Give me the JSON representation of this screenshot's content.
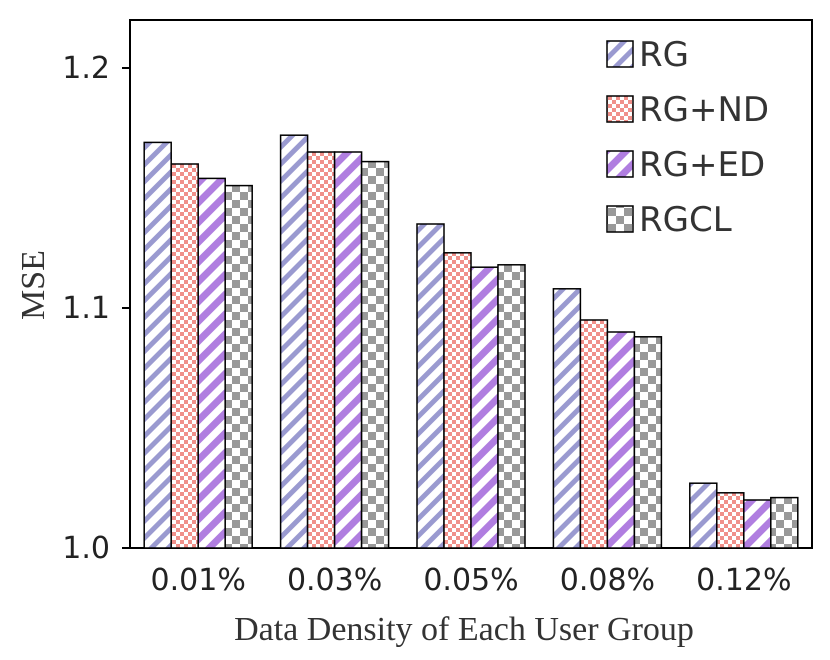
{
  "chart_data": {
    "type": "bar",
    "title": "",
    "xlabel": "Data Density of Each User Group",
    "ylabel": "MSE",
    "categories": [
      "0.01%",
      "0.03%",
      "0.05%",
      "0.08%",
      "0.12%"
    ],
    "ylim": [
      1.0,
      1.22
    ],
    "yticks": [
      1.0,
      1.1,
      1.2
    ],
    "ytick_labels": [
      "1.0",
      "1.1",
      "1.2"
    ],
    "grid": false,
    "legend_position": "top-right",
    "series": [
      {
        "name": "RG",
        "color": "#9a9ad0",
        "pattern": "diagonal-stripes",
        "values": [
          1.169,
          1.172,
          1.135,
          1.108,
          1.027
        ]
      },
      {
        "name": "RG+ND",
        "color": "#f0908a",
        "pattern": "checker-fine",
        "values": [
          1.16,
          1.165,
          1.123,
          1.095,
          1.023
        ]
      },
      {
        "name": "RG+ED",
        "color": "#b07ee0",
        "pattern": "diagonal-stripes-bold",
        "values": [
          1.154,
          1.165,
          1.117,
          1.09,
          1.02
        ]
      },
      {
        "name": "RGCL",
        "color": "#999999",
        "pattern": "checker-coarse",
        "values": [
          1.151,
          1.161,
          1.118,
          1.088,
          1.021
        ]
      }
    ]
  }
}
